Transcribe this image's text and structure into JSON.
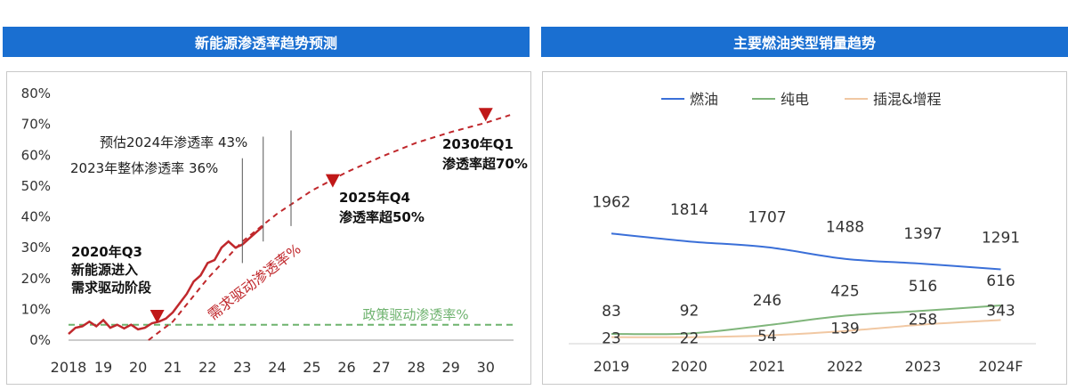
{
  "colors": {
    "header_bg": "#1a6fd1",
    "ev_curve": "#c0282c",
    "policy_line": "#6fb36f",
    "fuel": "#3a6fd8",
    "bev": "#7fb57a",
    "phev": "#f1c8a3"
  },
  "headers": {
    "left": "新能源渗透率趋势预测",
    "right": "主要燃油类型销量趋势"
  },
  "chart_data": [
    {
      "type": "line",
      "title": "新能源渗透率趋势预测",
      "y_ticks": [
        "0%",
        "10%",
        "20%",
        "30%",
        "40%",
        "50%",
        "60%",
        "70%",
        "80%"
      ],
      "ylim": [
        0,
        80
      ],
      "x_ticks": [
        "2018",
        "19",
        "20",
        "21",
        "22",
        "23",
        "24",
        "25",
        "26",
        "27",
        "28",
        "29",
        "30"
      ],
      "xlim": [
        2018,
        2030.8
      ],
      "series": [
        {
          "style": "solid",
          "x": [
            2018.0,
            2018.2,
            2018.4,
            2018.6,
            2018.8,
            2019.0,
            2019.2,
            2019.4,
            2019.6,
            2019.8,
            2020.0,
            2020.2,
            2020.4,
            2020.6,
            2020.8,
            2021.0,
            2021.2,
            2021.4,
            2021.6,
            2021.8,
            2022.0,
            2022.2,
            2022.4,
            2022.6,
            2022.8,
            2023.0,
            2023.2,
            2023.4,
            2023.6
          ],
          "y": [
            2,
            4,
            4.5,
            6,
            4.5,
            6.5,
            4,
            5,
            3.8,
            5,
            3.5,
            4,
            5.5,
            6,
            7,
            9,
            12,
            15,
            19,
            21,
            25,
            26,
            30,
            32,
            30,
            31,
            33,
            35,
            37
          ]
        },
        {
          "style": "dashed",
          "x": [
            2020.3,
            2021.0,
            2022.0,
            2023.0,
            2024.0,
            2025.0,
            2026.0,
            2027.0,
            2028.0,
            2029.0,
            2030.0,
            2030.7
          ],
          "y": [
            0,
            6,
            20,
            32,
            41,
            48.5,
            54.5,
            59.5,
            64,
            67.5,
            70.5,
            73
          ]
        }
      ],
      "policy_line": {
        "y": 5,
        "label": "政策驱动渗透率%"
      },
      "demand_label": "需求驱动渗透率%",
      "markers": [
        {
          "x": 2020.55,
          "y": 7.5
        },
        {
          "x": 2025.6,
          "y": 51.5
        },
        {
          "x": 2030.0,
          "y": 73
        }
      ],
      "annotations": {
        "a2020": [
          "2020年Q3",
          "新能源进入",
          "需求驱动阶段"
        ],
        "a2025": [
          "2025年Q4",
          "渗透率超50%"
        ],
        "a2030": [
          "2030年Q1",
          "渗透率超70%"
        ],
        "a2023": "2023年整体渗透率 36%",
        "a2024": "预估2024年渗透率 43%"
      }
    },
    {
      "type": "line",
      "title": "主要燃油类型销量趋势",
      "categories": [
        "2019",
        "2020",
        "2021",
        "2022",
        "2023",
        "2024F"
      ],
      "series": [
        {
          "name": "燃油",
          "values": [
            1962,
            1814,
            1707,
            1488,
            1397,
            1291
          ]
        },
        {
          "name": "纯电",
          "values": [
            83,
            92,
            246,
            425,
            516,
            616
          ]
        },
        {
          "name": "插混&增程",
          "values": [
            23,
            22,
            54,
            139,
            258,
            343
          ]
        }
      ],
      "legend_position": "top"
    }
  ]
}
